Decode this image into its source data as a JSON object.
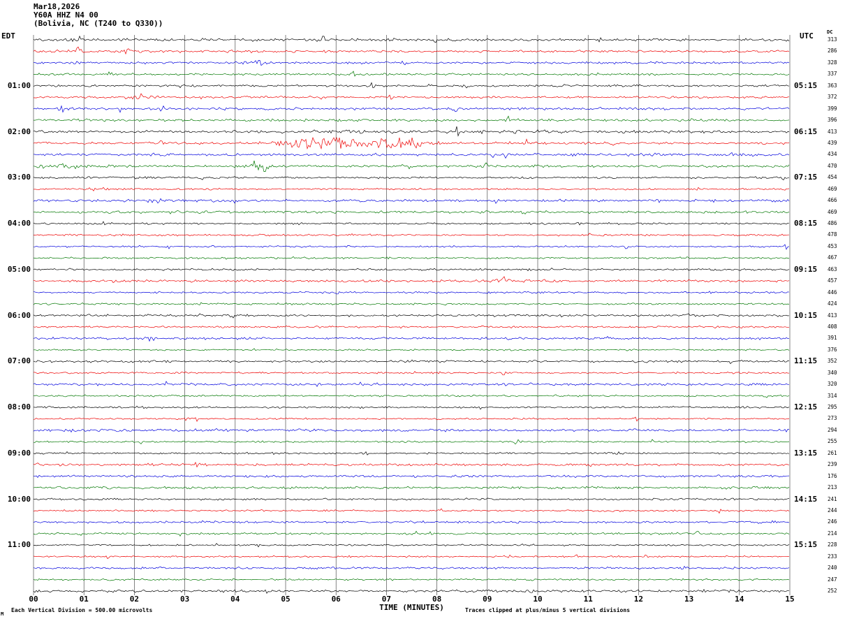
{
  "title_block": {
    "date": "Mar18,2026",
    "station": "Y60A HHZ N4 00",
    "location": "(Bolivia, NC (T240 to Q330))"
  },
  "labels": {
    "tz_left": "EDT",
    "tz_right": "UTC",
    "dc_header": "DC",
    "x_axis": "TIME (MINUTES)",
    "note_left": "Each Vertical Division =  500.00 microvolts",
    "note_right": "Traces clipped at plus/minus 5 vertical divisions",
    "corner_mark": "M"
  },
  "chart_data": {
    "type": "line",
    "subtype": "helicorder-seismogram",
    "title": "Y60A HHZ N4 00 (Bolivia, NC (T240 to Q330)) Mar18,2026",
    "xlabel": "TIME (MINUTES)",
    "x_range": [
      0,
      15
    ],
    "x_ticks": [
      "00",
      "01",
      "02",
      "03",
      "04",
      "05",
      "06",
      "07",
      "08",
      "09",
      "10",
      "11",
      "12",
      "13",
      "14",
      "15"
    ],
    "rows": 49,
    "minutes_per_row": 15,
    "traces_per_hour": 4,
    "grid": "vertical line at every minute",
    "legend_position": "none",
    "color_cycle_hex": [
      "#000000",
      "#ee0000",
      "#0000dd",
      "#007700"
    ],
    "color_cycle_names": [
      "black",
      "red",
      "blue",
      "green"
    ],
    "left_hour_labels": [
      "01:00",
      "02:00",
      "03:00",
      "04:00",
      "05:00",
      "06:00",
      "07:00",
      "08:00",
      "09:00",
      "10:00",
      "11:00"
    ],
    "right_hour_labels": [
      "05:15",
      "06:15",
      "07:15",
      "08:15",
      "09:15",
      "10:15",
      "11:15",
      "12:15",
      "13:15",
      "14:15",
      "15:15"
    ],
    "hour_label_row_start_index": 4,
    "dc_values": [
      313,
      286,
      328,
      337,
      363,
      372,
      399,
      396,
      413,
      439,
      434,
      470,
      454,
      469,
      466,
      469,
      486,
      478,
      453,
      467,
      463,
      457,
      446,
      424,
      413,
      408,
      391,
      376,
      352,
      340,
      320,
      314,
      295,
      273,
      294,
      255,
      261,
      239,
      176,
      213,
      241,
      244,
      246,
      214,
      228,
      233,
      240,
      247,
      252
    ],
    "events": [
      {
        "row": 1,
        "minute": 0.85,
        "width": 0.07,
        "amp": 4
      },
      {
        "row": 1,
        "minute": 1.9,
        "width": 0.06,
        "amp": 3
      },
      {
        "row": 2,
        "minute": 4.35,
        "width": 0.15,
        "amp": 2.2
      },
      {
        "row": 5,
        "minute": 2.2,
        "width": 0.12,
        "amp": 1.8
      },
      {
        "row": 8,
        "minute": 8.0,
        "width": 2.5,
        "amp": 0.5
      },
      {
        "row": 9,
        "minute": 5.6,
        "width": 0.4,
        "amp": 9
      },
      {
        "row": 9,
        "minute": 6.6,
        "width": 0.7,
        "amp": 2.5
      },
      {
        "row": 9,
        "minute": 7.3,
        "width": 0.25,
        "amp": 4
      },
      {
        "row": 11,
        "minute": 0.5,
        "width": 0.35,
        "amp": 2
      },
      {
        "row": 11,
        "minute": 4.45,
        "width": 0.12,
        "amp": 5
      },
      {
        "row": 13,
        "minute": 1.2,
        "width": 0.2,
        "amp": 1.5
      },
      {
        "row": 21,
        "minute": 9.3,
        "width": 0.1,
        "amp": 2.5
      },
      {
        "row": 33,
        "minute": 3.0,
        "width": 0.15,
        "amp": 2
      }
    ]
  }
}
